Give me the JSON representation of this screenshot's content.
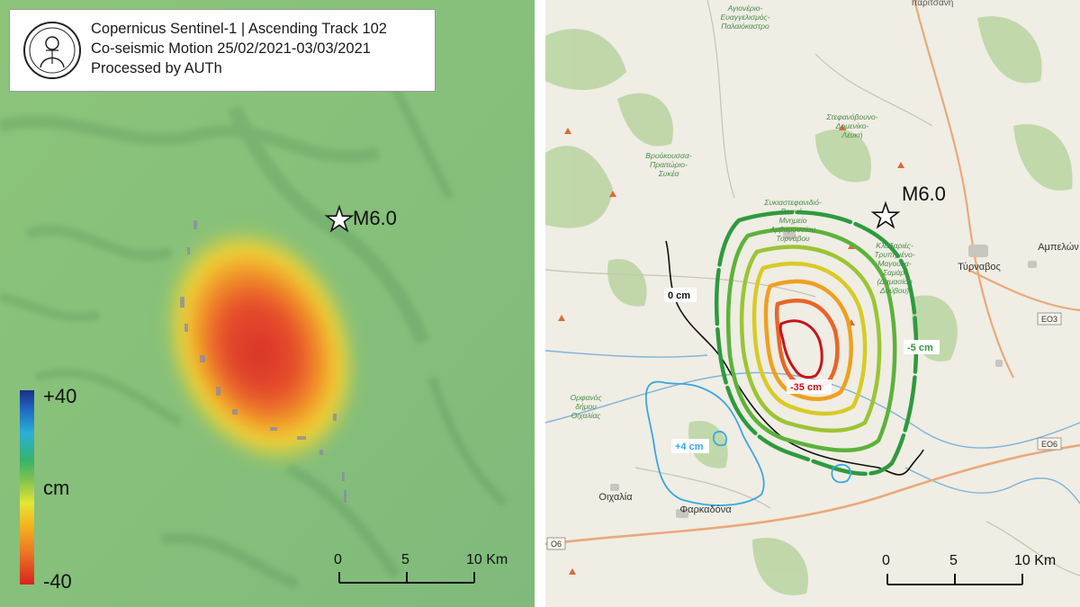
{
  "left_map": {
    "title_lines": [
      "Copernicus Sentinel-1 | Ascending Track 102",
      "Co-seismic Motion 25/02/2021-03/03/2021",
      "Processed by AUTh"
    ],
    "epicenter_label": "M6.0",
    "legend": {
      "max": "+40",
      "unit": "cm",
      "min": "-40"
    },
    "scale_ticks": [
      "0",
      "5",
      "10 Km"
    ]
  },
  "right_map": {
    "epicenter_label": "M6.0",
    "scale_ticks": [
      "0",
      "5",
      "10 Km"
    ],
    "contour_labels": {
      "zero": "0 cm",
      "min": "-35 cm",
      "outer": "-5 cm",
      "positive": "+4 cm"
    },
    "place_labels": {
      "top_right": "Ιταριτσάνη",
      "top_1": "Αγιονέριο-",
      "top_2": "Ευαγγελισμός-",
      "top_3": "Παλαιόκαστρο",
      "stef_1": "Στεφανόβουνο-",
      "stef_2": "Δομενίκο-",
      "stef_3": "Λευκή",
      "vrio_1": "Βρυόκουσσα-",
      "vrio_2": "Πραιτώριο-",
      "vrio_3": "Συκέα",
      "tyr_1": "Συκιαστεφανιδιό-",
      "tyr_2": "Βουνό-",
      "tyr_3": "Μνημείο",
      "tyr_4": "Αμβαμουσίου",
      "tyr_5": "Τυρνάβου",
      "klad_1": "Κλαδαριές-",
      "klad_2": "Τρυπημένο-",
      "klad_3": "Μαγούλα-",
      "klad_4": "Σαμάρι",
      "klad_5": "(Δαμασίου",
      "klad_6": "Δούβου)",
      "tyrnavos": "Τύρναβος",
      "ampelonas": "Αμπελών",
      "orfanos_1": "Ορφανός",
      "orfanos_2": "δήμου",
      "orfanos_3": "Οιχαλίας",
      "oichalia": "Οιχαλία",
      "farkadona": "Φαρκαδόνα",
      "road_eo3": "ΕΟ3",
      "road_eo6a": "ΕΟ6",
      "road_eo6b": "Ο6"
    }
  },
  "colors": {
    "zero_contour": "#111111",
    "min_contour": "#c8141a",
    "outer_contour": "#2e9a3e",
    "positive_contour": "#39a7e0"
  }
}
